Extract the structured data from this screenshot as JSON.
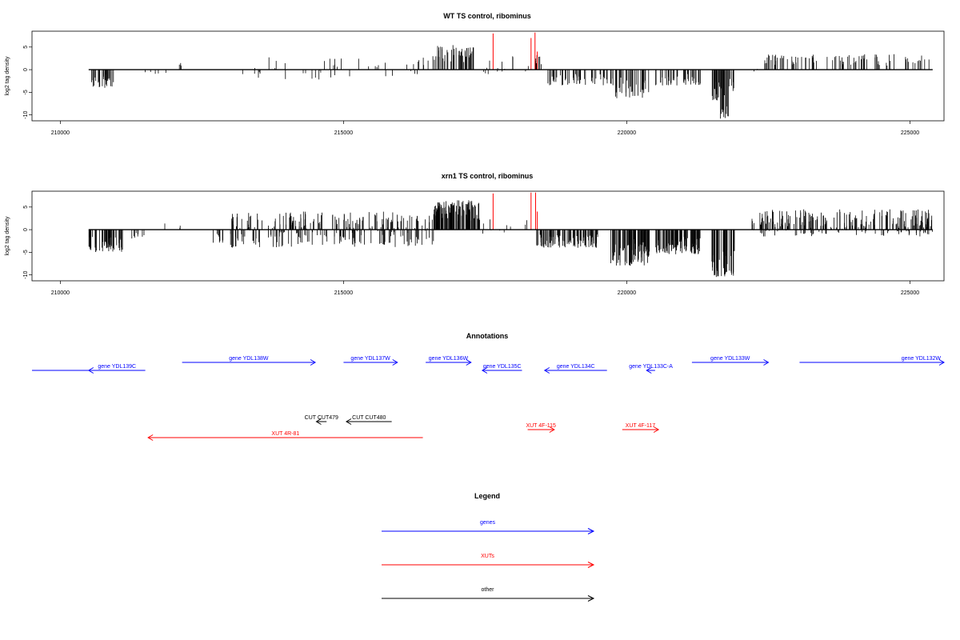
{
  "chart_data": [
    {
      "type": "bar",
      "title": "WT TS control, ribominus",
      "ylabel": "log2 tag density",
      "xlabel": "",
      "xlim": [
        209500,
        225600
      ],
      "ylim": [
        -11.3,
        8.5
      ],
      "x_ticks": [
        210000,
        215000,
        220000,
        225000
      ],
      "y_ticks": [
        5,
        0,
        -5,
        -10
      ],
      "grid": false,
      "series": [
        {
          "color": "#000000",
          "segments": [
            {
              "x0": 210500,
              "x1": 210950,
              "min": -4,
              "max": 0,
              "density": 0.5
            },
            {
              "x0": 211300,
              "x1": 212000,
              "min": -1,
              "max": 0,
              "density": 0.05
            },
            {
              "x0": 212100,
              "x1": 212150,
              "min": 0,
              "max": 1.5,
              "density": 0.5
            },
            {
              "x0": 213200,
              "x1": 215600,
              "min": -2.5,
              "max": 3,
              "density": 0.1
            },
            {
              "x0": 215600,
              "x1": 216100,
              "min": -2,
              "max": 2,
              "density": 0.05
            },
            {
              "x0": 216100,
              "x1": 216600,
              "min": -1,
              "max": 3,
              "density": 0.15
            },
            {
              "x0": 216600,
              "x1": 217300,
              "min": 0,
              "max": 5.5,
              "density": 0.45
            },
            {
              "x0": 217300,
              "x1": 217650,
              "min": -1,
              "max": 3,
              "density": 0.1
            },
            {
              "x0": 217700,
              "x1": 218350,
              "min": -1,
              "max": 3,
              "density": 0.1
            },
            {
              "x0": 218380,
              "x1": 218500,
              "min": 0,
              "max": 3.5,
              "density": 0.5
            },
            {
              "x0": 218600,
              "x1": 219800,
              "min": -3.5,
              "max": 0,
              "density": 0.3
            },
            {
              "x0": 219800,
              "x1": 220400,
              "min": -6.5,
              "max": 0,
              "density": 0.4
            },
            {
              "x0": 220500,
              "x1": 221300,
              "min": -3.5,
              "max": 0,
              "density": 0.35
            },
            {
              "x0": 221500,
              "x1": 221650,
              "min": -7,
              "max": 0,
              "density": 0.8
            },
            {
              "x0": 221650,
              "x1": 221800,
              "min": -11,
              "max": 0,
              "density": 0.8
            },
            {
              "x0": 221800,
              "x1": 221900,
              "min": -5,
              "max": 0,
              "density": 0.6
            },
            {
              "x0": 222200,
              "x1": 222400,
              "min": -1.5,
              "max": 1,
              "density": 0.1
            },
            {
              "x0": 222400,
              "x1": 225400,
              "min": 0,
              "max": 3.5,
              "density": 0.2
            }
          ]
        },
        {
          "color": "#ff0000",
          "spikes": [
            {
              "x": 217640,
              "y": 8.0
            },
            {
              "x": 218310,
              "y": 7.0
            },
            {
              "x": 218380,
              "y": 8.2
            },
            {
              "x": 218420,
              "y": 4.0
            }
          ]
        }
      ]
    },
    {
      "type": "bar",
      "title": "xrn1 TS control, ribominus",
      "ylabel": "log2 tag density",
      "xlabel": "",
      "xlim": [
        209500,
        225600
      ],
      "ylim": [
        -11.3,
        8.5
      ],
      "x_ticks": [
        210000,
        215000,
        220000,
        225000
      ],
      "y_ticks": [
        5,
        0,
        -5,
        -10
      ],
      "grid": false,
      "series": [
        {
          "color": "#000000",
          "segments": [
            {
              "x0": 210500,
              "x1": 211100,
              "min": -5,
              "max": 0,
              "density": 0.6
            },
            {
              "x0": 211200,
              "x1": 211500,
              "min": -2,
              "max": 0,
              "density": 0.2
            },
            {
              "x0": 211800,
              "x1": 212200,
              "min": -1,
              "max": 1.5,
              "density": 0.05
            },
            {
              "x0": 212700,
              "x1": 212900,
              "min": -3,
              "max": 0,
              "density": 0.3
            },
            {
              "x0": 213000,
              "x1": 216000,
              "min": -4,
              "max": 4,
              "density": 0.6
            },
            {
              "x0": 216000,
              "x1": 216600,
              "min": -4,
              "max": 3.5,
              "density": 0.5
            },
            {
              "x0": 216600,
              "x1": 217400,
              "min": 0,
              "max": 6.5,
              "density": 0.9
            },
            {
              "x0": 217400,
              "x1": 218250,
              "min": -1,
              "max": 3,
              "density": 0.1
            },
            {
              "x0": 218400,
              "x1": 219500,
              "min": -4,
              "max": 0,
              "density": 0.6
            },
            {
              "x0": 219700,
              "x1": 220400,
              "min": -8,
              "max": 0,
              "density": 0.8
            },
            {
              "x0": 220500,
              "x1": 221300,
              "min": -5.5,
              "max": 0,
              "density": 0.8
            },
            {
              "x0": 221500,
              "x1": 221900,
              "min": -10.5,
              "max": 0,
              "density": 0.8
            },
            {
              "x0": 222200,
              "x1": 225400,
              "min": -1.5,
              "max": 4.5,
              "density": 0.6
            }
          ]
        },
        {
          "color": "#ff0000",
          "spikes": [
            {
              "x": 217640,
              "y": 8.0
            },
            {
              "x": 218310,
              "y": 8.2
            },
            {
              "x": 218390,
              "y": 8.2
            },
            {
              "x": 218420,
              "y": 4.0
            }
          ]
        }
      ]
    }
  ],
  "annotations": {
    "title": "Annotations",
    "features": [
      {
        "label": "",
        "start": 209500,
        "end": 210550,
        "strand": "none",
        "row": 1,
        "color": "#0000ff"
      },
      {
        "label": "gene YDL139C",
        "start": 210500,
        "end": 211500,
        "strand": "-",
        "row": 1,
        "color": "#0000ff"
      },
      {
        "label": "gene YDL138W",
        "start": 212150,
        "end": 214500,
        "strand": "+",
        "row": 0,
        "color": "#0000ff"
      },
      {
        "label": "gene YDL137W",
        "start": 215000,
        "end": 215950,
        "strand": "+",
        "row": 0,
        "color": "#0000ff"
      },
      {
        "label": "gene YDL136W",
        "start": 216450,
        "end": 217250,
        "strand": "+",
        "row": 0,
        "color": "#0000ff"
      },
      {
        "label": "gene YDL135C",
        "start": 217450,
        "end": 218150,
        "strand": "-",
        "row": 1,
        "color": "#0000ff"
      },
      {
        "label": "gene YDL134C",
        "start": 218550,
        "end": 219650,
        "strand": "-",
        "row": 1,
        "color": "#0000ff"
      },
      {
        "label": "gene YDL133C-A",
        "start": 220350,
        "end": 220500,
        "strand": "-",
        "row": 1,
        "color": "#0000ff"
      },
      {
        "label": "gene YDL133W",
        "start": 221150,
        "end": 222500,
        "strand": "+",
        "row": 0,
        "color": "#0000ff"
      },
      {
        "label": "gene YDL132W",
        "start": 223050,
        "end": 225600,
        "strand": "+",
        "row": 0,
        "color": "#0000ff"
      },
      {
        "label": "CUT CUT479",
        "start": 214520,
        "end": 214700,
        "strand": "-",
        "row": 2,
        "color": "#000000"
      },
      {
        "label": "CUT CUT480",
        "start": 215050,
        "end": 215850,
        "strand": "-",
        "row": 2,
        "color": "#000000"
      },
      {
        "label": "XUT 4R-81",
        "start": 211550,
        "end": 216400,
        "strand": "-",
        "row": 4,
        "color": "#ff0000"
      },
      {
        "label": "XUT 4F-115",
        "start": 218250,
        "end": 218720,
        "strand": "+",
        "row": 3,
        "color": "#ff0000"
      },
      {
        "label": "XUT 4F-117",
        "start": 219920,
        "end": 220560,
        "strand": "+",
        "row": 3,
        "color": "#ff0000"
      }
    ]
  },
  "legend": {
    "title": "Legend",
    "items": [
      {
        "label": "genes",
        "color": "#0000ff"
      },
      {
        "label": "XUTs",
        "color": "#ff0000"
      },
      {
        "label": "other",
        "color": "#000000"
      }
    ]
  }
}
